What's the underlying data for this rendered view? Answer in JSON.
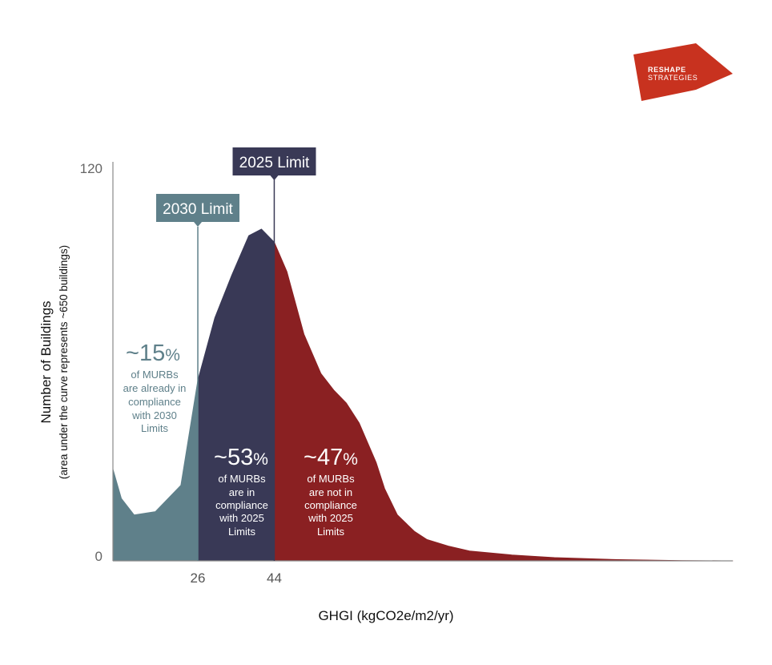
{
  "logo": {
    "line1": "RESHAPE",
    "line2": "STRATEGIES",
    "color": "#c8321f"
  },
  "colors": {
    "compliant_2030": "#5f808a",
    "compliant_2025": "#393956",
    "non_compliant": "#8a2022",
    "limit_2030_label_bg": "#5f808a",
    "limit_2025_label_bg": "#393956",
    "axis": "#888888"
  },
  "chart_data": {
    "type": "area",
    "title": "",
    "xlabel": "GHGI (kgCO2e/m2/yr)",
    "ylabel": "Number of Buildings",
    "ylabel_sub": "(area under the curve represents ~650 buildings)",
    "ylim": [
      0,
      120
    ],
    "y_ticks": [
      "120",
      "0"
    ],
    "x_ticks": [
      "26",
      "44"
    ],
    "grid": false,
    "curve": {
      "x": [
        6,
        8,
        11,
        16,
        22,
        26,
        30,
        34,
        38,
        41,
        44,
        47,
        51,
        55,
        58,
        61,
        64,
        66,
        68,
        70,
        73,
        77,
        80,
        85,
        90,
        100,
        110,
        125,
        140,
        152
      ],
      "y": [
        28,
        19,
        14,
        15,
        23,
        55,
        74,
        87,
        99,
        101,
        97,
        88,
        69,
        57,
        52,
        48,
        42,
        36,
        30,
        22,
        14,
        9,
        6.5,
        4.5,
        3,
        1.8,
        1,
        0.4,
        0.1,
        0
      ]
    },
    "limits": [
      {
        "label": "2030 Limit",
        "x": 26
      },
      {
        "label": "2025 Limit",
        "x": 44
      }
    ],
    "regions": [
      {
        "name": "compliant_2030",
        "x_range": [
          6,
          26
        ],
        "percent": "~15",
        "pct_sign": "%",
        "text": [
          "of MURBs",
          "are already in",
          "compliance",
          "with 2030",
          "Limits"
        ]
      },
      {
        "name": "compliant_2025",
        "x_range": [
          26,
          44
        ],
        "percent": "~53",
        "pct_sign": "%",
        "text": [
          "of MURBs",
          "are in",
          "compliance",
          "with 2025",
          "Limits"
        ]
      },
      {
        "name": "non_compliant",
        "x_range": [
          44,
          152
        ],
        "percent": "~47",
        "pct_sign": "%",
        "text": [
          "of MURBs",
          "are not in",
          "compliance",
          "with 2025",
          "Limits"
        ]
      }
    ]
  }
}
